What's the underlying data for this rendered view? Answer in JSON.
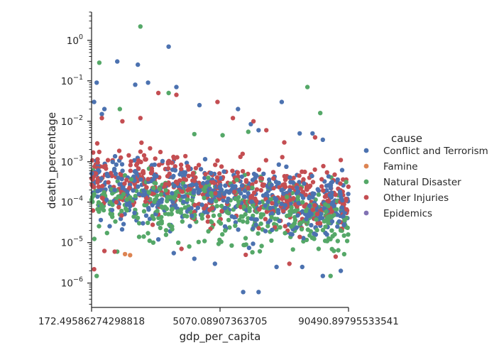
{
  "chart_data": {
    "type": "scatter",
    "title": "",
    "xlabel": "gdp_per_capita",
    "ylabel": "death_percentage",
    "x_ticks": [
      "172.49586274298818",
      "5070.08907363705",
      "90490.89795533541"
    ],
    "y_ticks": [
      {
        "exp": 0,
        "label_base": "10",
        "label_exp": "0"
      },
      {
        "exp": -1,
        "label_base": "10",
        "label_exp": "−1"
      },
      {
        "exp": -2,
        "label_base": "10",
        "label_exp": "−2"
      },
      {
        "exp": -3,
        "label_base": "10",
        "label_exp": "−3"
      },
      {
        "exp": -4,
        "label_base": "10",
        "label_exp": "−4"
      },
      {
        "exp": -5,
        "label_base": "10",
        "label_exp": "−5"
      },
      {
        "exp": -6,
        "label_base": "10",
        "label_exp": "−6"
      }
    ],
    "y_scale": "log",
    "ylim": [
      2.5e-07,
      5
    ],
    "x_note": "x axis is categorical (one column per country gdp value); 172.49586274298818 at left edge, 5070.08907363705 near middle, 90490.89795533541 near right edge",
    "legend_title": "cause",
    "legend_position": "right",
    "grid": false,
    "series": [
      {
        "name": "Conflict and Terrorism",
        "color": "#4c72b0",
        "points": [
          [
            0.02,
            0.09
          ],
          [
            0.01,
            0.03
          ],
          [
            0.04,
            0.015
          ],
          [
            0.05,
            0.02
          ],
          [
            0.1,
            0.3
          ],
          [
            0.17,
            0.08
          ],
          [
            0.18,
            0.25
          ],
          [
            0.3,
            0.7
          ],
          [
            0.22,
            0.09
          ],
          [
            0.33,
            0.07
          ],
          [
            0.42,
            0.025
          ],
          [
            0.57,
            0.02
          ],
          [
            0.62,
            0.0085
          ],
          [
            0.65,
            0.006
          ],
          [
            0.74,
            0.03
          ],
          [
            0.81,
            0.005
          ],
          [
            0.86,
            0.005
          ],
          [
            0.9,
            0.0035
          ],
          [
            0.06,
            0.0005
          ],
          [
            0.09,
            0.0002
          ],
          [
            0.15,
            8e-05
          ],
          [
            0.2,
            3e-05
          ],
          [
            0.26,
            1.2e-05
          ],
          [
            0.32,
            5.5e-06
          ],
          [
            0.4,
            4e-06
          ],
          [
            0.48,
            3e-06
          ],
          [
            0.59,
            6e-07
          ],
          [
            0.65,
            6e-07
          ],
          [
            0.72,
            2.5e-06
          ],
          [
            0.82,
            2.5e-06
          ],
          [
            0.9,
            1.5e-06
          ],
          [
            0.97,
            2e-06
          ]
        ]
      },
      {
        "name": "Famine",
        "color": "#dd8452",
        "points": [
          [
            0.13,
            5.2e-06
          ],
          [
            0.15,
            4.9e-06
          ]
        ]
      },
      {
        "name": "Natural Disaster",
        "color": "#55a868",
        "points": [
          [
            0.03,
            0.28
          ],
          [
            0.19,
            2.2
          ],
          [
            0.11,
            0.02
          ],
          [
            0.3,
            0.05
          ],
          [
            0.4,
            0.0048
          ],
          [
            0.51,
            0.0045
          ],
          [
            0.61,
            0.0055
          ],
          [
            0.84,
            0.07
          ],
          [
            0.89,
            0.016
          ],
          [
            0.02,
            1.5e-06
          ],
          [
            0.1,
            6e-06
          ],
          [
            0.24,
            1e-05
          ],
          [
            0.38,
            8e-06
          ],
          [
            0.52,
            2e-05
          ],
          [
            0.66,
            5e-05
          ],
          [
            0.79,
            3e-05
          ],
          [
            0.93,
            1.5e-06
          ],
          [
            0.97,
            2e-05
          ]
        ]
      },
      {
        "name": "Other Injuries",
        "color": "#c44e52",
        "points": [
          [
            0.04,
            0.012
          ],
          [
            0.12,
            0.01
          ],
          [
            0.19,
            0.012
          ],
          [
            0.26,
            0.05
          ],
          [
            0.33,
            0.045
          ],
          [
            0.49,
            0.03
          ],
          [
            0.55,
            0.012
          ],
          [
            0.63,
            0.01
          ],
          [
            0.68,
            0.006
          ],
          [
            0.75,
            0.003
          ],
          [
            0.87,
            0.004
          ],
          [
            0.97,
            0.0011
          ],
          [
            0.99,
            0.00012
          ],
          [
            0.01,
            2.2e-06
          ],
          [
            0.05,
            6.2e-06
          ],
          [
            0.09,
            6e-06
          ],
          [
            0.35,
            7e-06
          ],
          [
            0.6,
            5e-06
          ],
          [
            0.77,
            3e-06
          ],
          [
            0.95,
            4.5e-06
          ]
        ]
      },
      {
        "name": "Epidemics",
        "color": "#8172b3",
        "points": []
      }
    ]
  }
}
